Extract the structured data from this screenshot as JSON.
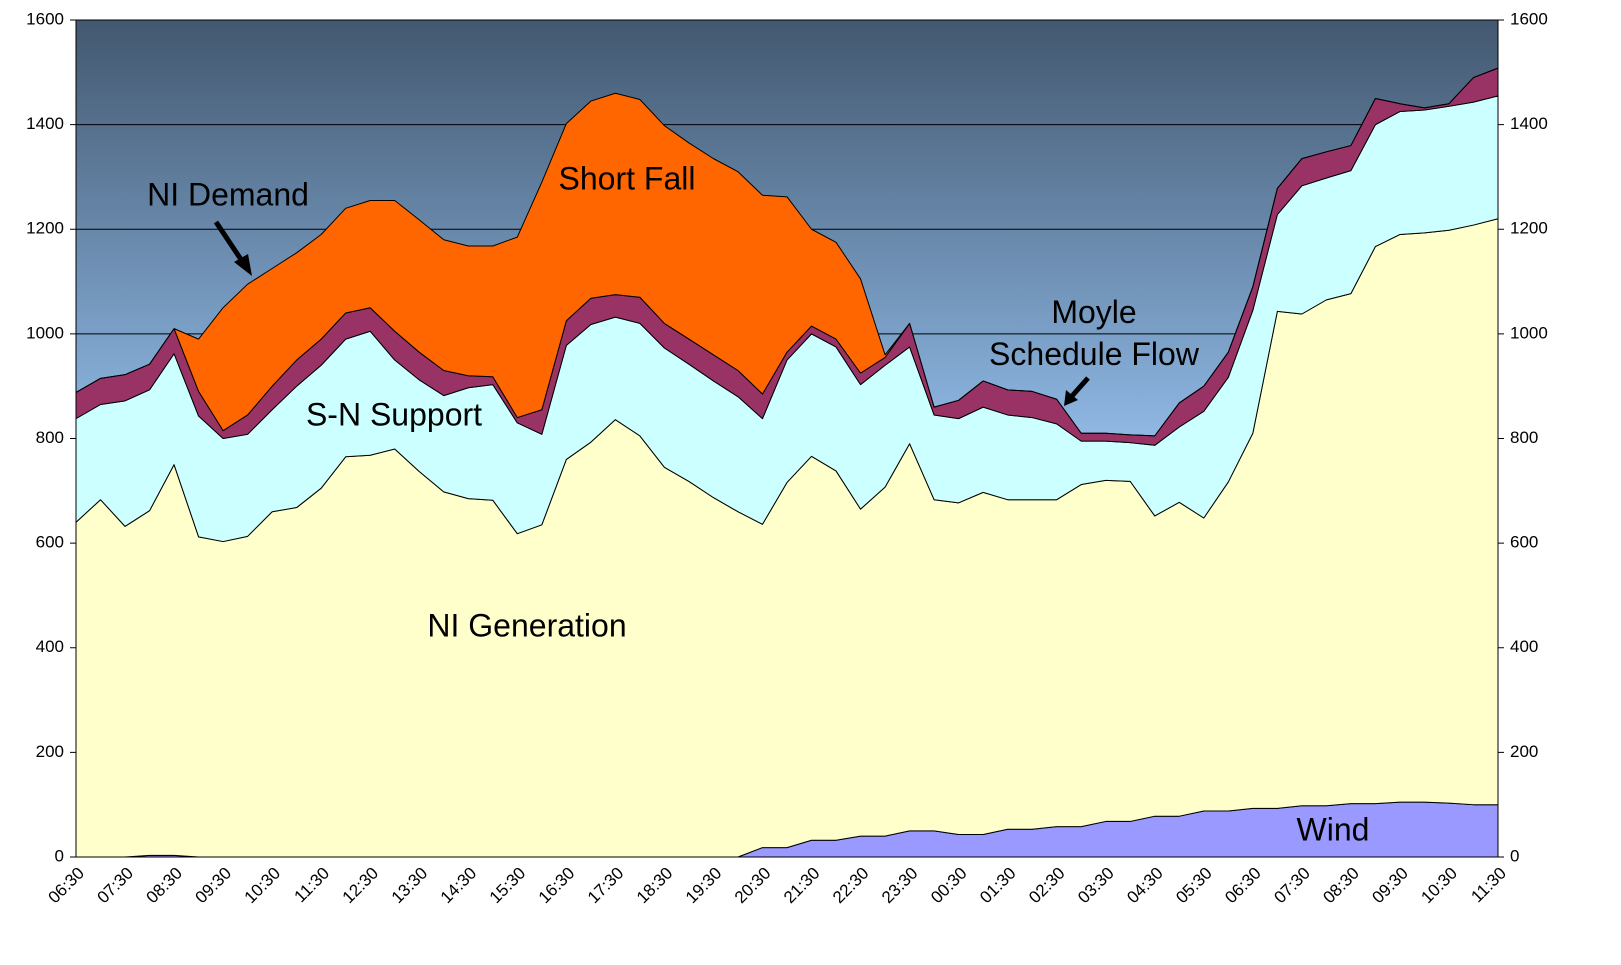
{
  "chart_data": {
    "type": "area",
    "stacked": true,
    "annotations": [
      "NI Demand"
    ],
    "categories": [
      "06:30",
      null,
      "07:30",
      null,
      "08:30",
      null,
      "09:30",
      null,
      "10:30",
      null,
      "11:30",
      null,
      "12:30",
      null,
      "13:30",
      null,
      "14:30",
      null,
      "15:30",
      null,
      "16:30",
      null,
      "17:30",
      null,
      "18:30",
      null,
      "19:30",
      null,
      "20:30",
      null,
      "21:30",
      null,
      "22:30",
      null,
      "23:30",
      null,
      "00:30",
      null,
      "01:30",
      null,
      "02:30",
      null,
      "03:30",
      null,
      "04:30",
      null,
      "05:30",
      null,
      "06:30",
      null,
      "07:30",
      null,
      "08:30",
      null,
      "09:30",
      null,
      "10:30",
      null,
      "11:30"
    ],
    "series": [
      {
        "name": "Wind",
        "color": "#9999ff",
        "values": [
          0,
          0,
          0,
          3,
          3,
          0,
          0,
          0,
          0,
          0,
          0,
          0,
          0,
          0,
          0,
          0,
          0,
          0,
          0,
          0,
          0,
          0,
          0,
          0,
          0,
          0,
          0,
          0,
          18,
          18,
          32,
          32,
          40,
          40,
          50,
          50,
          43,
          43,
          53,
          53,
          58,
          58,
          68,
          68,
          78,
          78,
          88,
          88,
          93,
          93,
          98,
          98,
          102,
          102,
          105,
          105,
          103,
          100,
          100
        ]
      },
      {
        "name": "NI Generation",
        "color": "#ffffcc",
        "values": [
          640,
          683,
          632,
          659,
          747,
          612,
          603,
          613,
          660,
          668,
          705,
          765,
          768,
          780,
          737,
          698,
          685,
          682,
          618,
          635,
          760,
          793,
          836,
          805,
          745,
          718,
          687,
          660,
          618,
          698,
          734,
          706,
          625,
          667,
          740,
          633,
          634,
          654,
          630,
          630,
          625,
          654,
          652,
          650,
          574,
          600,
          560,
          629,
          717,
          950,
          940,
          967,
          975,
          1065,
          1085,
          1088,
          1095,
          1108,
          1120
        ]
      },
      {
        "name": "S-N Support",
        "color": "#ccffff",
        "values": [
          198,
          182,
          240,
          231,
          212,
          231,
          197,
          195,
          195,
          232,
          235,
          225,
          237,
          170,
          175,
          184,
          212,
          221,
          212,
          173,
          218,
          225,
          196,
          215,
          228,
          224,
          223,
          220,
          202,
          234,
          234,
          237,
          238,
          233,
          185,
          162,
          161,
          163,
          162,
          157,
          145,
          83,
          75,
          74,
          135,
          144,
          204,
          200,
          235,
          185,
          245,
          233,
          235,
          233,
          235,
          235,
          237,
          235,
          235
        ]
      },
      {
        "name": "Moyle Schedule Flow",
        "color": "#993366",
        "values": [
          50,
          50,
          50,
          49,
          48,
          47,
          15,
          37,
          45,
          50,
          50,
          50,
          45,
          55,
          53,
          48,
          23,
          15,
          10,
          47,
          47,
          50,
          43,
          50,
          47,
          48,
          50,
          50,
          47,
          15,
          15,
          15,
          22,
          15,
          45,
          15,
          35,
          50,
          48,
          50,
          47,
          15,
          15,
          15,
          18,
          46,
          48,
          48,
          45,
          50,
          52,
          50,
          48,
          50,
          15,
          4,
          5,
          47,
          53
        ]
      },
      {
        "name": "Short Fall",
        "color": "#ff6600",
        "values": [
          0,
          0,
          0,
          0,
          0,
          100,
          235,
          250,
          225,
          205,
          200,
          200,
          205,
          250,
          253,
          250,
          248,
          250,
          345,
          435,
          377,
          377,
          385,
          378,
          378,
          375,
          375,
          380,
          380,
          297,
          185,
          185,
          180,
          5,
          0,
          0,
          0,
          0,
          0,
          0,
          0,
          0,
          0,
          0,
          0,
          0,
          0,
          0,
          0,
          0,
          0,
          0,
          0,
          0,
          0,
          0,
          0,
          0,
          0
        ]
      }
    ],
    "ylim": [
      0,
      1600
    ],
    "yticks": [
      0,
      200,
      400,
      600,
      800,
      1000,
      1200,
      1400,
      1600
    ],
    "y2lim": [
      0,
      1600
    ],
    "y2ticks": [
      0,
      200,
      400,
      600,
      800,
      1000,
      1200,
      1400,
      1600
    ],
    "grid": true
  }
}
